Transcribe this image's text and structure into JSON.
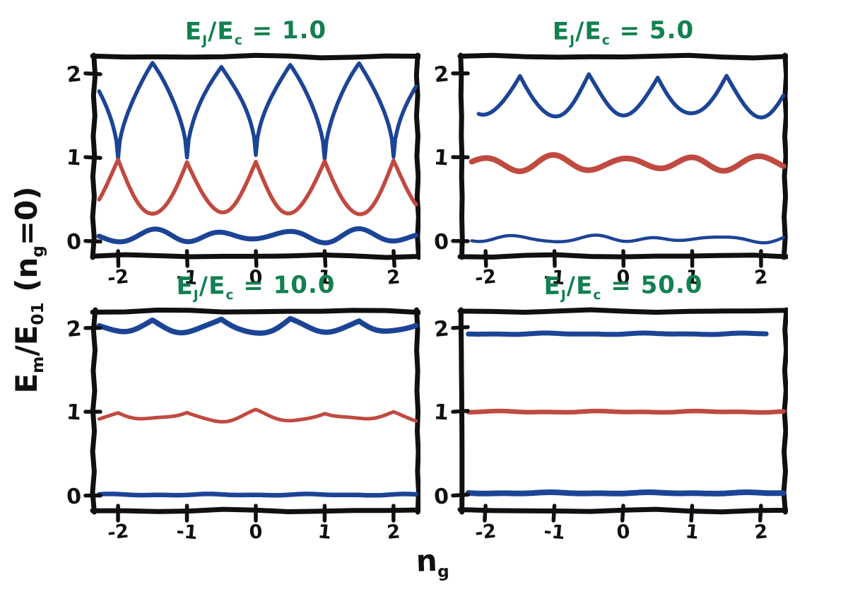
{
  "colors": {
    "band_blue": "#1c4496",
    "band_red": "#c04a40",
    "title_green": "#12804f",
    "axis_black": "#101010",
    "background": "#ffffff"
  },
  "figure": {
    "x_axis_label": {
      "base": "n",
      "sub": "g"
    },
    "y_axis_label": {
      "p1": "E",
      "s1": "m",
      "p2": "/E",
      "s2": "01",
      "p3": " (n",
      "s3": "g",
      "p4": "=0)"
    }
  },
  "chart_data": {
    "type": "line",
    "description": "Charge qubit / transmon energy bands Em versus offset charge ng for increasing EJ/EC; bands flatten as EJ/EC grows",
    "grid": false,
    "legend": "none",
    "x": {
      "min": -2.35,
      "max": 2.35,
      "ticks": [
        -2,
        -1,
        0,
        1,
        2
      ],
      "tick_labels": [
        "-2",
        "-1",
        "0",
        "1",
        "2"
      ]
    },
    "y": {
      "min": -0.18,
      "max": 2.2,
      "ticks": [
        0,
        1,
        2
      ],
      "tick_labels": [
        "0",
        "1",
        "2"
      ]
    },
    "plots": [
      {
        "title": {
          "p1": "E",
          "s1": "J",
          "p2": "/E",
          "s2": "c",
          "p3": " = 1.0"
        },
        "ej_over_ec": 1.0,
        "series": [
          {
            "name": "E2-band",
            "color": "band_blue",
            "value_at_integer_ng": 1.0,
            "value_at_half_integer_ng": 2.1,
            "shape": "cusp-both",
            "stroke": 5.5
          },
          {
            "name": "E1-band",
            "color": "band_red",
            "value_at_integer_ng": 0.95,
            "value_at_half_integer_ng": 0.33,
            "shape": "peak-integer",
            "stroke": 5.5
          },
          {
            "name": "E0-band",
            "color": "band_blue",
            "value_at_integer_ng": 0.0,
            "value_at_half_integer_ng": 0.12,
            "shape": "smooth",
            "stroke": 7
          }
        ]
      },
      {
        "title": {
          "p1": "E",
          "s1": "J",
          "p2": "/E",
          "s2": "c",
          "p3": " = 5.0"
        },
        "ej_over_ec": 5.0,
        "series": [
          {
            "name": "E2-band",
            "color": "band_blue",
            "value_at_integer_ng": 1.5,
            "value_at_half_integer_ng": 1.97,
            "shape": "peak-half",
            "stroke": 5.5,
            "x_start": -2.1
          },
          {
            "name": "E1-band",
            "color": "band_red",
            "value_at_integer_ng": 1.0,
            "value_at_half_integer_ng": 0.85,
            "shape": "smooth",
            "stroke": 8,
            "x_start": -2.2
          },
          {
            "name": "E0-band",
            "color": "band_blue",
            "value_at_integer_ng": 0.0,
            "value_at_half_integer_ng": 0.05,
            "shape": "smooth",
            "stroke": 4.5,
            "x_start": -2.2
          }
        ]
      },
      {
        "title": {
          "p1": "E",
          "s1": "J",
          "p2": "/E",
          "s2": "c",
          "p3": " = 10.0"
        },
        "ej_over_ec": 10.0,
        "series": [
          {
            "name": "E2-band",
            "color": "band_blue",
            "value_at_integer_ng": 1.95,
            "value_at_half_integer_ng": 2.1,
            "shape": "peak-half",
            "stroke": 7.5
          },
          {
            "name": "E1-band",
            "color": "band_red",
            "value_at_integer_ng": 1.0,
            "value_at_half_integer_ng": 0.9,
            "shape": "peak-integer",
            "stroke": 5
          },
          {
            "name": "E0-band",
            "color": "band_blue",
            "value_at_integer_ng": 0.01,
            "value_at_half_integer_ng": 0.02,
            "shape": "flat",
            "stroke": 6.5
          }
        ]
      },
      {
        "title": {
          "p1": "E",
          "s1": "J",
          "p2": "/E",
          "s2": "c",
          "p3": " = 50.0"
        },
        "ej_over_ec": 50.0,
        "series": [
          {
            "name": "E2-band",
            "color": "band_blue",
            "value_at_integer_ng": 1.93,
            "value_at_half_integer_ng": 1.93,
            "shape": "flat",
            "stroke": 7,
            "x_start": -2.25,
            "x_end": 2.08
          },
          {
            "name": "E1-band",
            "color": "band_red",
            "value_at_integer_ng": 1.0,
            "value_at_half_integer_ng": 1.0,
            "shape": "flat",
            "stroke": 6.5,
            "x_start": -2.25
          },
          {
            "name": "E0-band",
            "color": "band_blue",
            "value_at_integer_ng": 0.03,
            "value_at_half_integer_ng": 0.03,
            "shape": "flat",
            "stroke": 8,
            "x_start": -2.25
          }
        ]
      }
    ]
  }
}
